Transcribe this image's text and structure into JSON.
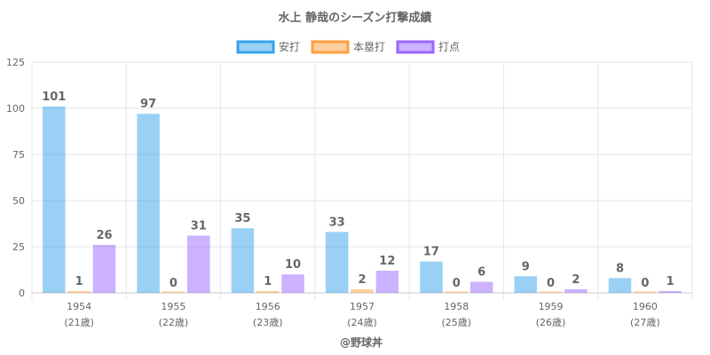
{
  "chart_data": {
    "type": "bar",
    "title": "水上 静哉のシーズン打撃成績",
    "categories": [
      "1954",
      "1955",
      "1956",
      "1957",
      "1958",
      "1959",
      "1960"
    ],
    "sublabels": [
      "(21歳)",
      "(22歳)",
      "(23歳)",
      "(24歳)",
      "(25歳)",
      "(26歳)",
      "(27歳)"
    ],
    "series": [
      {
        "name": "安打",
        "values": [
          101,
          97,
          35,
          33,
          17,
          9,
          8
        ],
        "color": "#36a2eb"
      },
      {
        "name": "本塁打",
        "values": [
          1,
          0,
          1,
          2,
          0,
          0,
          0
        ],
        "color": "#ff9f40"
      },
      {
        "name": "打点",
        "values": [
          26,
          31,
          10,
          12,
          6,
          2,
          1
        ],
        "color": "#9966ff"
      }
    ],
    "ylim": [
      0,
      125
    ],
    "yticks": [
      0,
      25,
      50,
      75,
      100,
      125
    ],
    "xlabel": "",
    "ylabel": "",
    "grid": true,
    "legend": "top-center",
    "footer": "@野球丼"
  }
}
